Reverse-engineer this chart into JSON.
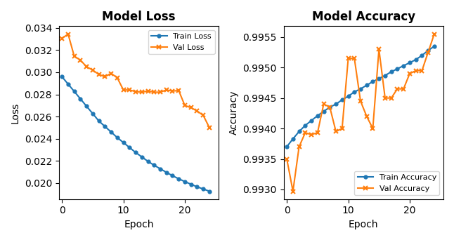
{
  "train_loss": [
    0.0296,
    0.02893,
    0.02827,
    0.0276,
    0.02693,
    0.02627,
    0.0256,
    0.0251,
    0.0246,
    0.0241,
    0.02365,
    0.0232,
    0.02275,
    0.02235,
    0.02195,
    0.0216,
    0.02128,
    0.02096,
    0.02065,
    0.02038,
    0.02012,
    0.01988,
    0.01965,
    0.01945,
    0.01925
  ],
  "val_loss": [
    0.03305,
    0.03345,
    0.03145,
    0.0311,
    0.0305,
    0.0302,
    0.0298,
    0.0296,
    0.0299,
    0.0295,
    0.0284,
    0.0284,
    0.02825,
    0.0282,
    0.0283,
    0.0282,
    0.0282,
    0.0284,
    0.0283,
    0.02835,
    0.027,
    0.0268,
    0.0265,
    0.0261,
    0.025
  ],
  "train_acc": [
    0.9937,
    0.99383,
    0.99395,
    0.99405,
    0.99413,
    0.99421,
    0.99428,
    0.99435,
    0.9944,
    0.99447,
    0.99453,
    0.9946,
    0.99465,
    0.99471,
    0.99477,
    0.99482,
    0.99487,
    0.99493,
    0.99498,
    0.99503,
    0.99508,
    0.99513,
    0.9952,
    0.99528,
    0.99535
  ],
  "val_acc": [
    0.9935,
    0.99297,
    0.9937,
    0.99393,
    0.9939,
    0.99393,
    0.9944,
    0.99435,
    0.99395,
    0.994,
    0.99515,
    0.99515,
    0.99445,
    0.9942,
    0.994,
    0.9953,
    0.9945,
    0.9945,
    0.99465,
    0.99465,
    0.9949,
    0.99495,
    0.99495,
    0.99525,
    0.99555
  ],
  "loss_title": "Model Loss",
  "acc_title": "Model Accuracy",
  "xlabel": "Epoch",
  "loss_ylabel": "Loss",
  "acc_ylabel": "Accuracy",
  "train_loss_label": "Train Loss",
  "val_loss_label": "Val Loss",
  "train_acc_label": "Train Accuracy",
  "val_acc_label": "Val Accuracy",
  "train_color": "#1f77b4",
  "val_color": "#ff7f0e",
  "loss_ylim_min": 0.021,
  "loss_ylim_max": 0.034,
  "acc_ylim_min": 0.9928,
  "acc_ylim_max": 0.9957
}
